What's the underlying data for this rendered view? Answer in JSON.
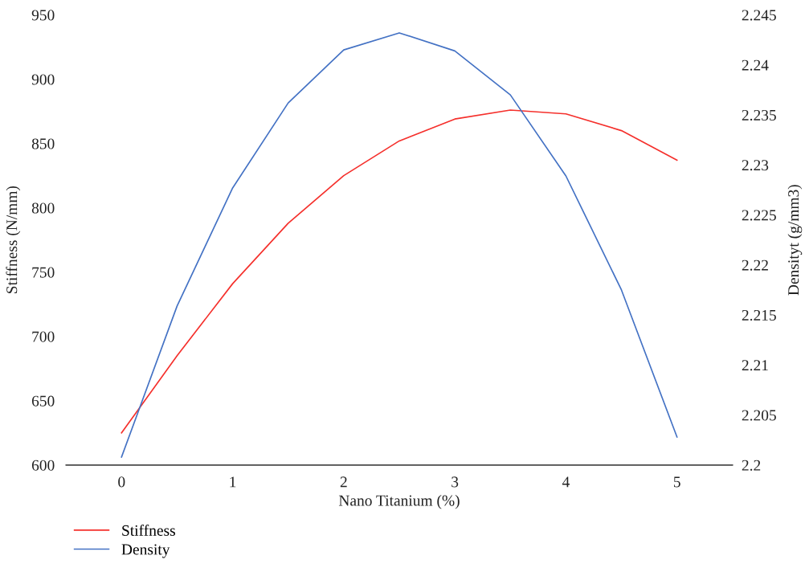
{
  "chart_data": {
    "type": "line",
    "xlabel": "Nano Titanium (%)",
    "ylabel": "Stiffness (N/mm)",
    "y2label": "Densityt (g/mm3)",
    "x": [
      0,
      0.5,
      1,
      1.5,
      2,
      2.5,
      3,
      3.5,
      4,
      4.5,
      5
    ],
    "series": [
      {
        "name": "Stiffness",
        "color": "#f5302c",
        "values": [
          625,
          685,
          741,
          788,
          825,
          852,
          869,
          876,
          873,
          860,
          837
        ]
      },
      {
        "name": "Density",
        "color": "#4472c4",
        "axis": "y2",
        "values": [
          2.2008,
          2.2159,
          2.2277,
          2.2362,
          2.2415,
          2.2432,
          2.2414,
          2.237,
          2.2289,
          2.2175,
          2.2028
        ]
      }
    ],
    "xlim": [
      -0.5,
      5.5
    ],
    "xticks": [
      0,
      1,
      2,
      3,
      4,
      5
    ],
    "ylim": [
      600,
      950
    ],
    "yticks": [
      600,
      650,
      700,
      750,
      800,
      850,
      900,
      950
    ],
    "y2lim": [
      2.2,
      2.245
    ],
    "y2ticks": [
      2.2,
      2.205,
      2.21,
      2.215,
      2.22,
      2.225,
      2.23,
      2.235,
      2.24,
      2.245
    ],
    "grid": false,
    "legend": "bottom left",
    "marker": "none",
    "line_style": "solid"
  }
}
